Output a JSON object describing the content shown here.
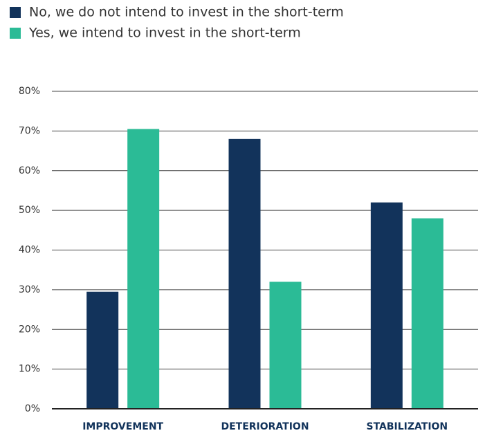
{
  "chart_data": {
    "type": "bar",
    "categories": [
      "IMPROVEMENT",
      "DETERIORATION",
      "STABILIZATION"
    ],
    "series": [
      {
        "name": "No, we do not intend to invest in the short-term",
        "color": "#12335b",
        "values": [
          29.5,
          68,
          52
        ]
      },
      {
        "name": "Yes, we intend to invest in the short-term",
        "color": "#2bbb96",
        "values": [
          70.5,
          32,
          48
        ]
      }
    ],
    "ylim": [
      0,
      80
    ],
    "yticks": [
      {
        "value": 0,
        "label": "0%"
      },
      {
        "value": 10,
        "label": "10%"
      },
      {
        "value": 20,
        "label": "20%"
      },
      {
        "value": 30,
        "label": "30%"
      },
      {
        "value": 40,
        "label": "40%"
      },
      {
        "value": 50,
        "label": "50%"
      },
      {
        "value": 60,
        "label": "60%"
      },
      {
        "value": 70,
        "label": "70%"
      },
      {
        "value": 80,
        "label": "80%"
      }
    ],
    "grid": true
  }
}
